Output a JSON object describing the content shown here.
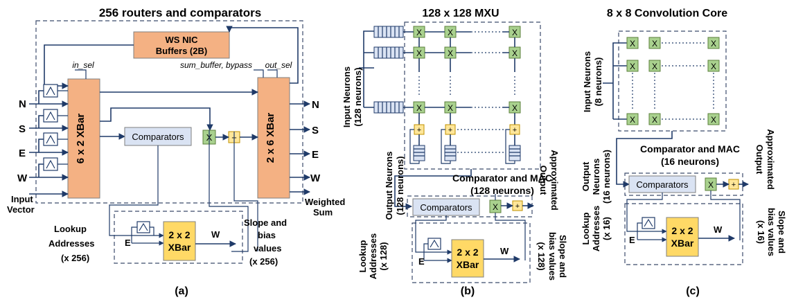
{
  "panel_a": {
    "title": "256 routers and comparators",
    "nic_line1": "WS NIC",
    "nic_line2": "Buffers (2B)",
    "in_sel": "in_sel",
    "sum_buffer": "sum_buffer, bypass",
    "out_sel": "out_sel",
    "xbar_left": "6 x 2 XBar",
    "xbar_right": "2 x 6 XBar",
    "comparators": "Comparators",
    "mul": "X",
    "add": "+",
    "in_ports": [
      "N",
      "S",
      "E",
      "W"
    ],
    "out_ports": [
      "N",
      "S",
      "E",
      "W"
    ],
    "input_vector_1": "Input",
    "input_vector_2": "Vector",
    "weighted_1": "Weighted",
    "weighted_2": "Sum",
    "lookup_1": "Lookup",
    "lookup_2": "Addresses",
    "lookup_3": "(x 256)",
    "e_label": "E",
    "xbar_small_1": "2 x 2",
    "xbar_small_2": "XBar",
    "w_label": "W",
    "slope_1": "Slope and",
    "slope_2": "bias",
    "slope_3": "values",
    "slope_4": "(x 256)",
    "caption": "(a)"
  },
  "panel_b": {
    "title": "128 x 128 MXU",
    "input_neurons_1": "Input Neurons",
    "input_neurons_2": "(128 neurons)",
    "output_neurons_1": "Output Neurons",
    "output_neurons_2": "(128 neurons)",
    "approx_1": "Approximated",
    "approx_2": "Output",
    "comp_mac_1": "Comparator and MAC",
    "comp_mac_2": "(128 neurons)",
    "comparators": "Comparators",
    "lookup_1": "Lookup",
    "lookup_2": "Addresses",
    "lookup_3": "(x 128)",
    "slope_1": "Slope and",
    "slope_2": "bias values",
    "slope_3": "(x 128)",
    "e_label": "E",
    "w_label": "W",
    "xbar_small_1": "2 x 2",
    "xbar_small_2": "XBar",
    "mul": "X",
    "add": "+",
    "caption": "(b)"
  },
  "panel_c": {
    "title": "8 x 8 Convolution Core",
    "input_neurons_1": "Input Neurons",
    "input_neurons_2": "(8 neurons)",
    "output_neurons_1": "Output",
    "output_neurons_2": "Neurons",
    "output_neurons_3": "(16 neurons)",
    "approx_1": "Approximated",
    "approx_2": "Output",
    "comp_mac_1": "Comparator and MAC",
    "comp_mac_2": "(16 neurons)",
    "comparators": "Comparators",
    "lookup_1": "Lookup",
    "lookup_2": "Addresses",
    "lookup_3": "(x 16)",
    "slope_1": "Slope and",
    "slope_2": "bias values",
    "slope_3": "(x 16)",
    "e_label": "E",
    "w_label": "W",
    "xbar_small_1": "2 x 2",
    "xbar_small_2": "XBar",
    "mul": "X",
    "add": "+",
    "caption": "(c)"
  }
}
